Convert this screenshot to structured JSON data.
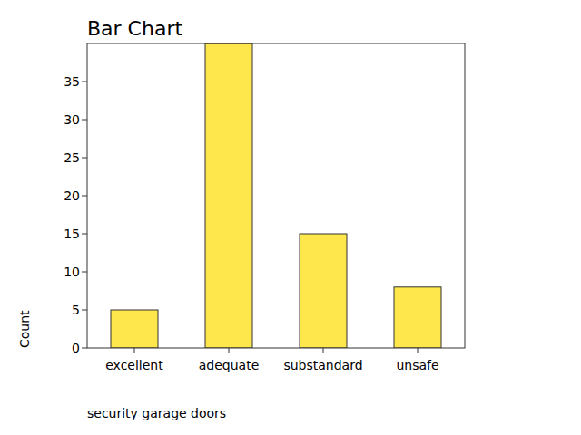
{
  "chart_data": {
    "type": "bar",
    "title": "Bar Chart",
    "x_label": "security garage doors",
    "y_label": "Count",
    "categories": [
      "excellent",
      "adequate",
      "substandard",
      "unsafe"
    ],
    "values": [
      5,
      40,
      15,
      8
    ],
    "color": "#fde74c",
    "ylim": [
      0,
      40
    ],
    "yticks": [
      0,
      5,
      10,
      15,
      20,
      25,
      30,
      35
    ],
    "grid": false
  }
}
